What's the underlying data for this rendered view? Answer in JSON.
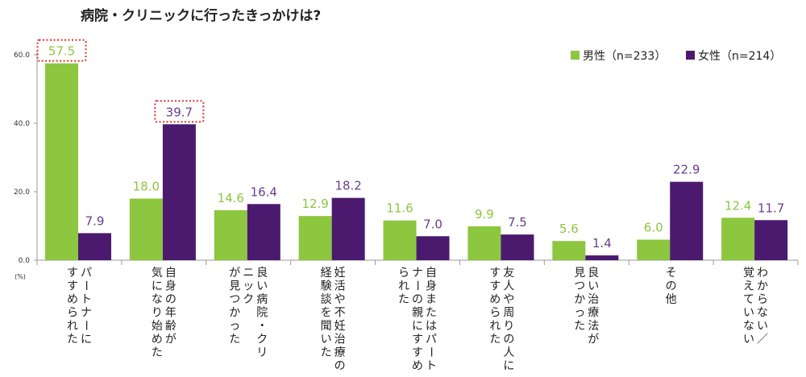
{
  "chart_data": {
    "type": "bar",
    "title": "病院・クリニックに行ったきっかけは?",
    "unit_label": "(%)",
    "ylim": [
      0,
      60
    ],
    "yticks": [
      "0.0",
      "20.0",
      "40.0",
      "60.0"
    ],
    "grid": false,
    "legend_position": "top-right",
    "categories": [
      [
        "パートナーに",
        "すすめられた"
      ],
      [
        "自身の年齢が",
        "気になり始めた"
      ],
      [
        "良い病院・クリ",
        "ニック",
        "が見つかった"
      ],
      [
        "妊活や不妊治療の",
        "経験談を聞いた"
      ],
      [
        "自身またはパート",
        "ナーの親にすすめ",
        "られた"
      ],
      [
        "友人や周りの人に",
        "すすめられた"
      ],
      [
        "良い治療法が",
        "見つかった"
      ],
      [
        "その他"
      ],
      [
        "わからない／",
        "覚えていない"
      ]
    ],
    "series": [
      {
        "name": "男性（n=233）",
        "color": "#8dc63f",
        "values": [
          57.5,
          18.0,
          14.6,
          12.9,
          11.6,
          9.9,
          5.6,
          6.0,
          12.4
        ],
        "labels": [
          "57.5",
          "18.0",
          "14.6",
          "12.9",
          "11.6",
          "9.9",
          "5.6",
          "6.0",
          "12.4"
        ]
      },
      {
        "name": "女性（n=214）",
        "color": "#4b1a6e",
        "values": [
          7.9,
          39.7,
          16.4,
          18.2,
          7.0,
          7.5,
          1.4,
          22.9,
          11.7
        ],
        "labels": [
          "7.9",
          "39.7",
          "16.4",
          "18.2",
          "7.0",
          "7.5",
          "1.4",
          "22.9",
          "11.7"
        ]
      }
    ],
    "highlighted": [
      {
        "series": 0,
        "category": 0
      },
      {
        "series": 1,
        "category": 1
      }
    ],
    "highlight_color": "#e03030",
    "label_colors": [
      "#8dc63f",
      "#6a3d8f"
    ]
  }
}
